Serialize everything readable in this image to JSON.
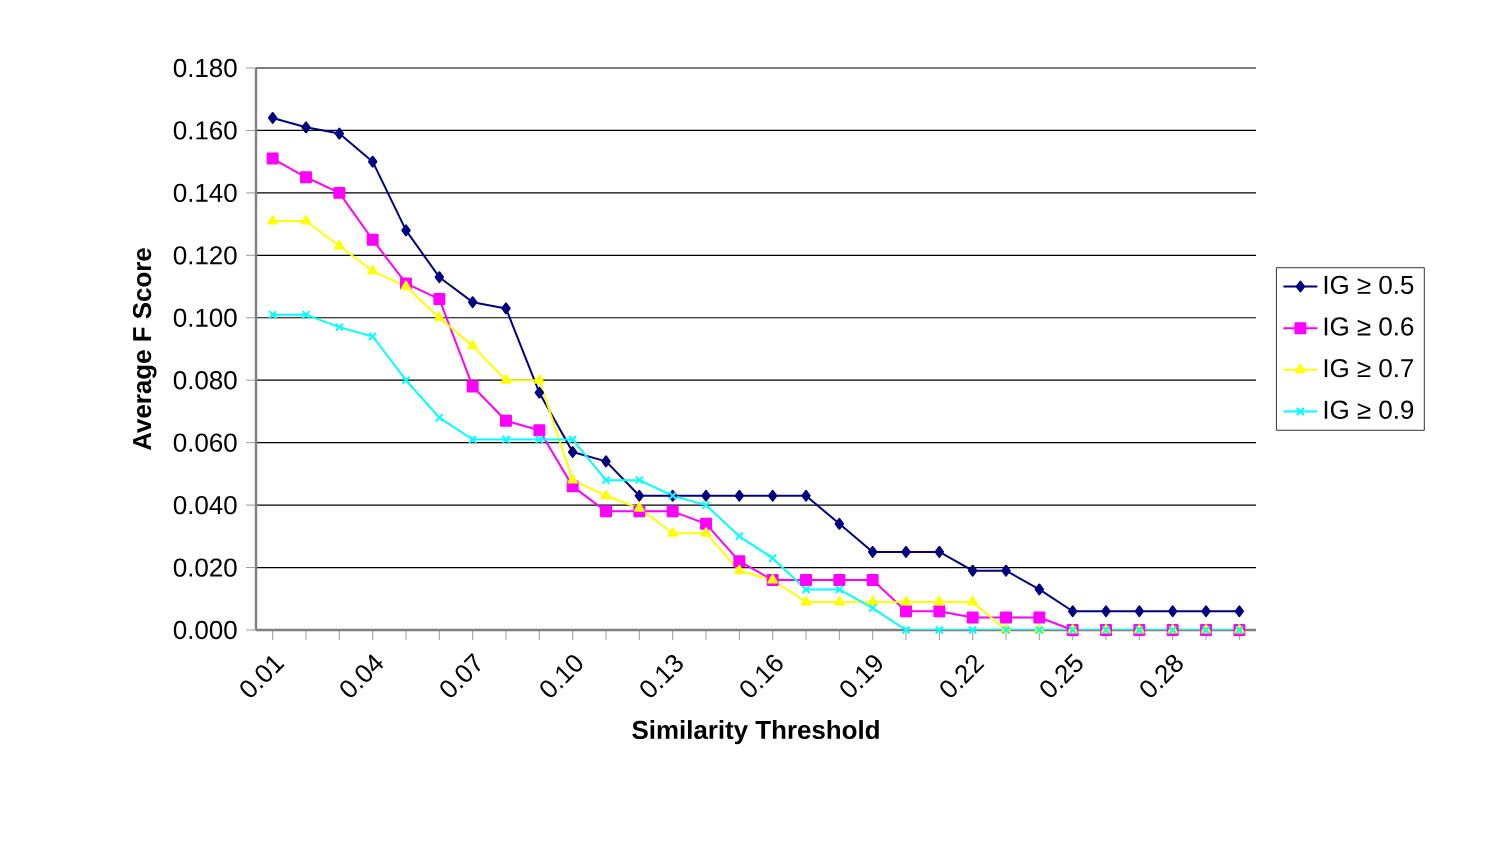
{
  "chart_data": {
    "type": "line",
    "xlabel": "Similarity Threshold",
    "ylabel": "Average F Score",
    "categories": [
      "0.01",
      null,
      null,
      "0.04",
      null,
      null,
      "0.07",
      null,
      null,
      "0.10",
      null,
      null,
      "0.13",
      null,
      null,
      "0.16",
      null,
      null,
      "0.19",
      null,
      null,
      "0.22",
      null,
      null,
      "0.25",
      null,
      null,
      "0.28",
      null,
      null
    ],
    "series": [
      {
        "name": "IG ≥ 0.5",
        "color": "#000080",
        "marker": "diamond",
        "values": [
          0.164,
          0.161,
          0.159,
          0.15,
          0.128,
          0.113,
          0.105,
          0.103,
          0.076,
          0.057,
          0.054,
          0.043,
          0.043,
          0.043,
          0.043,
          0.043,
          0.043,
          0.034,
          0.025,
          0.025,
          0.025,
          0.019,
          0.019,
          0.013,
          0.006,
          0.006,
          0.006,
          0.006,
          0.006,
          0.006
        ]
      },
      {
        "name": "IG ≥ 0.6",
        "color": "#ff00ff",
        "marker": "square",
        "values": [
          0.151,
          0.145,
          0.14,
          0.125,
          0.111,
          0.106,
          0.078,
          0.067,
          0.064,
          0.046,
          0.038,
          0.038,
          0.038,
          0.034,
          0.022,
          0.016,
          0.016,
          0.016,
          0.016,
          0.006,
          0.006,
          0.004,
          0.004,
          0.004,
          0,
          0,
          0,
          0,
          0,
          0
        ]
      },
      {
        "name": "IG ≥ 0.7",
        "color": "#ffff00",
        "marker": "triangle",
        "values": [
          0.131,
          0.131,
          0.123,
          0.115,
          0.11,
          0.1,
          0.091,
          0.08,
          0.08,
          0.048,
          0.043,
          0.039,
          0.031,
          0.031,
          0.019,
          0.016,
          0.009,
          0.009,
          0.009,
          0.009,
          0.009,
          0.009,
          0,
          0,
          0,
          0,
          0,
          0,
          0,
          0
        ]
      },
      {
        "name": "IG ≥ 0.9",
        "color": "#00ffff",
        "marker": "cross",
        "values": [
          0.101,
          0.101,
          0.097,
          0.094,
          0.08,
          0.068,
          0.061,
          0.061,
          0.061,
          0.061,
          0.048,
          0.048,
          0.043,
          0.04,
          0.03,
          0.023,
          0.013,
          0.013,
          0.007,
          0,
          0,
          0,
          0,
          0,
          0,
          0,
          0,
          0,
          0,
          0
        ]
      }
    ],
    "ylim": [
      0,
      0.18
    ],
    "yticks": [
      {
        "value": 0,
        "label": "0.000"
      },
      {
        "value": 0.02,
        "label": "0.020"
      },
      {
        "value": 0.04,
        "label": "0.040"
      },
      {
        "value": 0.06,
        "label": "0.060"
      },
      {
        "value": 0.08,
        "label": "0.080"
      },
      {
        "value": 0.1,
        "label": "0.100"
      },
      {
        "value": 0.12,
        "label": "0.120"
      },
      {
        "value": 0.14,
        "label": "0.140"
      },
      {
        "value": 0.16,
        "label": "0.160"
      },
      {
        "value": 0.18,
        "label": "0.180"
      }
    ],
    "grid": "y",
    "legend": "right",
    "line_style": "solid"
  }
}
